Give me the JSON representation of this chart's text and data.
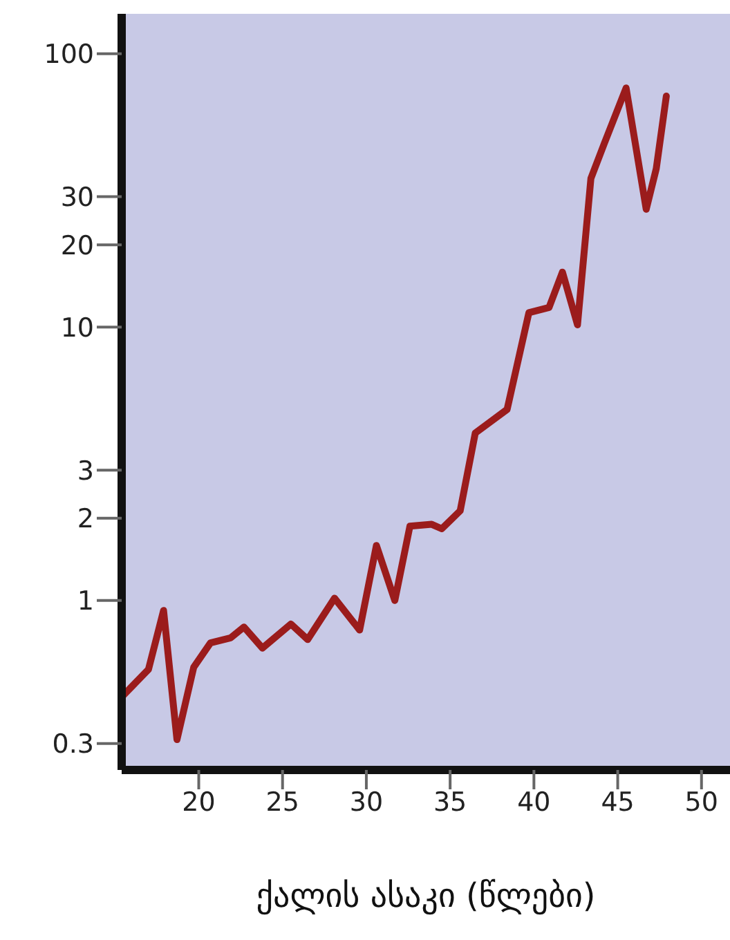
{
  "chart_data": {
    "type": "line",
    "xlabel": "ქალის ასაკი (წლები)",
    "x": [
      15.5,
      17.0,
      17.9,
      18.7,
      19.7,
      20.7,
      21.9,
      22.7,
      23.8,
      25.5,
      26.5,
      28.1,
      29.6,
      30.6,
      31.7,
      32.6,
      33.9,
      34.5,
      35.6,
      36.5,
      38.4,
      39.7,
      40.9,
      41.7,
      42.6,
      43.4,
      44.2,
      45.5,
      46.7,
      47.3,
      47.9
    ],
    "series": [
      {
        "color": "#9b1c1c",
        "values": [
          0.45,
          0.56,
          0.92,
          0.31,
          0.57,
          0.7,
          0.73,
          0.8,
          0.67,
          0.82,
          0.72,
          1.02,
          0.78,
          1.59,
          1.0,
          1.87,
          1.9,
          1.83,
          2.13,
          4.1,
          5.0,
          11.3,
          11.8,
          15.9,
          10.2,
          35,
          47,
          75,
          27,
          38,
          70
        ]
      }
    ],
    "xlim": [
      15.4,
      51.7
    ],
    "xticks": [
      20,
      25,
      30,
      35,
      40,
      45,
      50
    ],
    "ylim": [
      0.24,
      140
    ],
    "yticks": [
      0.3,
      1,
      2,
      3,
      10,
      20,
      30,
      100
    ],
    "log": true,
    "grid": false,
    "legend": false,
    "marker": "none",
    "line_style": "solid"
  }
}
